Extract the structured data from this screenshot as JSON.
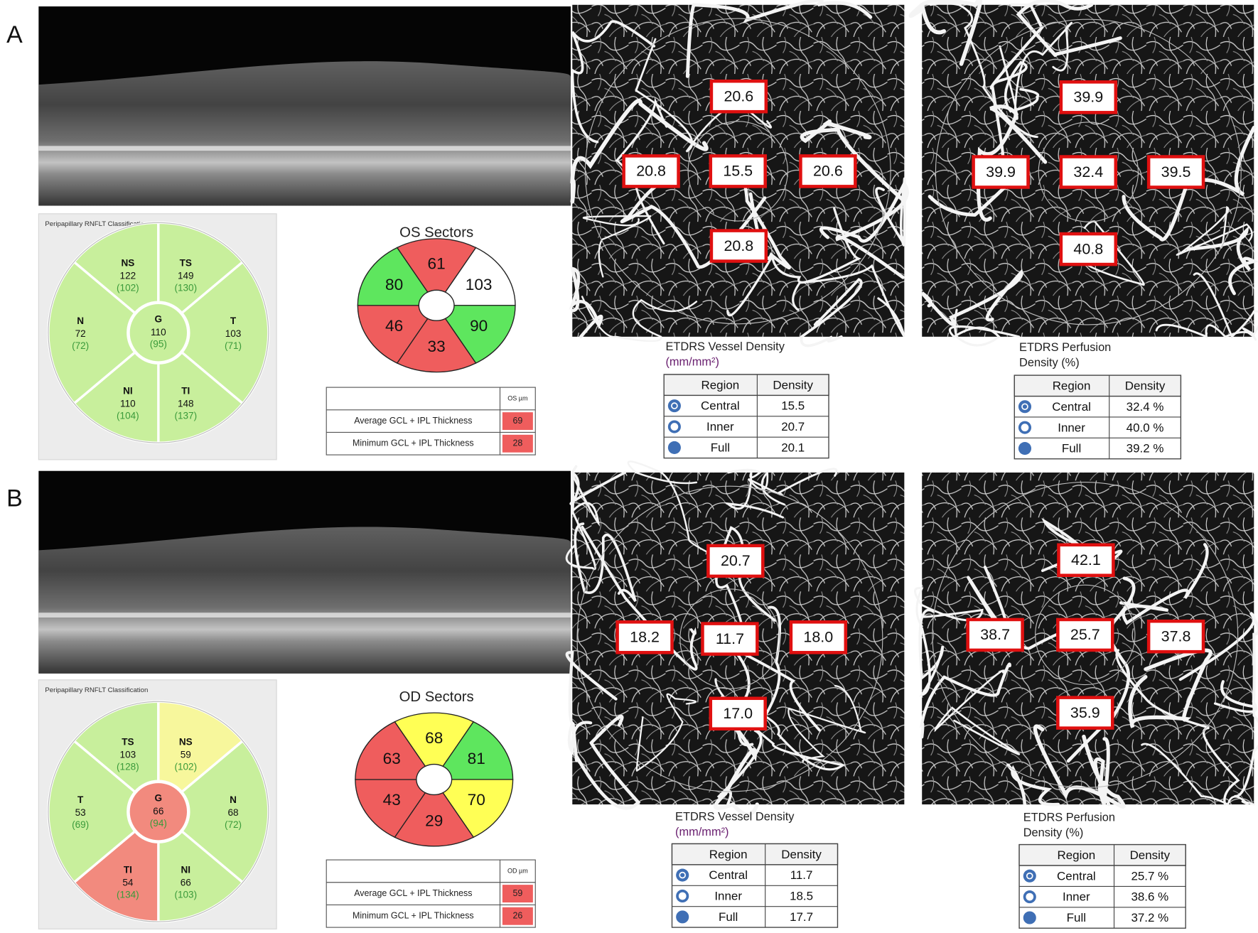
{
  "panels": [
    {
      "label": "A",
      "rnflt": {
        "title": "Peripapillary RNFLT Classification",
        "center": {
          "code": "G",
          "value": "110",
          "normal": "(95)",
          "color": "#c8ef9c"
        },
        "sectors": [
          {
            "code": "NS",
            "value": "122",
            "normal": "(102)",
            "color": "#c8ef9c"
          },
          {
            "code": "TS",
            "value": "149",
            "normal": "(130)",
            "color": "#c8ef9c"
          },
          {
            "code": "T",
            "value": "103",
            "normal": "(71)",
            "color": "#c8ef9c"
          },
          {
            "code": "TI",
            "value": "148",
            "normal": "(137)",
            "color": "#c8ef9c"
          },
          {
            "code": "NI",
            "value": "110",
            "normal": "(104)",
            "color": "#c8ef9c"
          },
          {
            "code": "N",
            "value": "72",
            "normal": "(72)",
            "color": "#c8ef9c"
          }
        ]
      },
      "gcipl": {
        "title": "OS Sectors",
        "sectors": [
          {
            "value": "61",
            "color": "#ef5d5d"
          },
          {
            "value": "103",
            "color": "#ffffff"
          },
          {
            "value": "90",
            "color": "#5ee65e"
          },
          {
            "value": "33",
            "color": "#ef5d5d"
          },
          {
            "value": "46",
            "color": "#ef5d5d"
          },
          {
            "value": "80",
            "color": "#5ee65e"
          }
        ],
        "table": {
          "header": "OS µm",
          "rows": [
            {
              "label": "Average GCL + IPL Thickness",
              "value": "69"
            },
            {
              "label": "Minimum GCL + IPL Thickness",
              "value": "28"
            }
          ]
        }
      },
      "vessel_density": {
        "caption": [
          "ETDRS Vessel Density",
          "(mm/mm²)"
        ],
        "map": {
          "top": "20.6",
          "left": "20.8",
          "center": "15.5",
          "right": "20.6",
          "bottom": "20.8"
        },
        "table": {
          "headers": [
            "Region",
            "Density"
          ],
          "rows": [
            [
              "Central",
              "15.5"
            ],
            [
              "Inner",
              "20.7"
            ],
            [
              "Full",
              "20.1"
            ]
          ]
        }
      },
      "perfusion": {
        "caption": [
          "ETDRS Perfusion",
          "Density (%)"
        ],
        "map": {
          "top": "39.9",
          "left": "39.9",
          "center": "32.4",
          "right": "39.5",
          "bottom": "40.8"
        },
        "table": {
          "headers": [
            "Region",
            "Density"
          ],
          "rows": [
            [
              "Central",
              "32.4 %"
            ],
            [
              "Inner",
              "40.0 %"
            ],
            [
              "Full",
              "39.2 %"
            ]
          ]
        }
      }
    },
    {
      "label": "B",
      "rnflt": {
        "title": "Peripapillary RNFLT Classification",
        "center": {
          "code": "G",
          "value": "66",
          "normal": "(94)",
          "color": "#f28a7e"
        },
        "sectors": [
          {
            "code": "TS",
            "value": "103",
            "normal": "(128)",
            "color": "#c8ef9c"
          },
          {
            "code": "NS",
            "value": "59",
            "normal": "(102)",
            "color": "#f7f79c"
          },
          {
            "code": "N",
            "value": "68",
            "normal": "(72)",
            "color": "#c8ef9c"
          },
          {
            "code": "NI",
            "value": "66",
            "normal": "(103)",
            "color": "#c8ef9c"
          },
          {
            "code": "TI",
            "value": "54",
            "normal": "(134)",
            "color": "#f28a7e"
          },
          {
            "code": "T",
            "value": "53",
            "normal": "(69)",
            "color": "#c8ef9c"
          }
        ]
      },
      "gcipl": {
        "title": "OD Sectors",
        "sectors": [
          {
            "value": "68",
            "color": "#ffff55"
          },
          {
            "value": "81",
            "color": "#5ee65e"
          },
          {
            "value": "70",
            "color": "#ffff55"
          },
          {
            "value": "29",
            "color": "#ef5d5d"
          },
          {
            "value": "43",
            "color": "#ef5d5d"
          },
          {
            "value": "63",
            "color": "#ef5d5d"
          }
        ],
        "table": {
          "header": "OD µm",
          "rows": [
            {
              "label": "Average GCL + IPL Thickness",
              "value": "59"
            },
            {
              "label": "Minimum GCL + IPL Thickness",
              "value": "26"
            }
          ]
        }
      },
      "vessel_density": {
        "caption": [
          "ETDRS Vessel Density",
          "(mm/mm²)"
        ],
        "map": {
          "top": "20.7",
          "left": "18.2",
          "center": "11.7",
          "right": "18.0",
          "bottom": "17.0"
        },
        "table": {
          "headers": [
            "Region",
            "Density"
          ],
          "rows": [
            [
              "Central",
              "11.7"
            ],
            [
              "Inner",
              "18.5"
            ],
            [
              "Full",
              "17.7"
            ]
          ]
        }
      },
      "perfusion": {
        "caption": [
          "ETDRS Perfusion",
          "Density (%)"
        ],
        "map": {
          "top": "42.1",
          "left": "38.7",
          "center": "25.7",
          "right": "37.8",
          "bottom": "35.9"
        },
        "table": {
          "headers": [
            "Region",
            "Density"
          ],
          "rows": [
            [
              "Central",
              "25.7 %"
            ],
            [
              "Inner",
              "38.6 %"
            ],
            [
              "Full",
              "37.2 %"
            ]
          ]
        }
      }
    }
  ]
}
